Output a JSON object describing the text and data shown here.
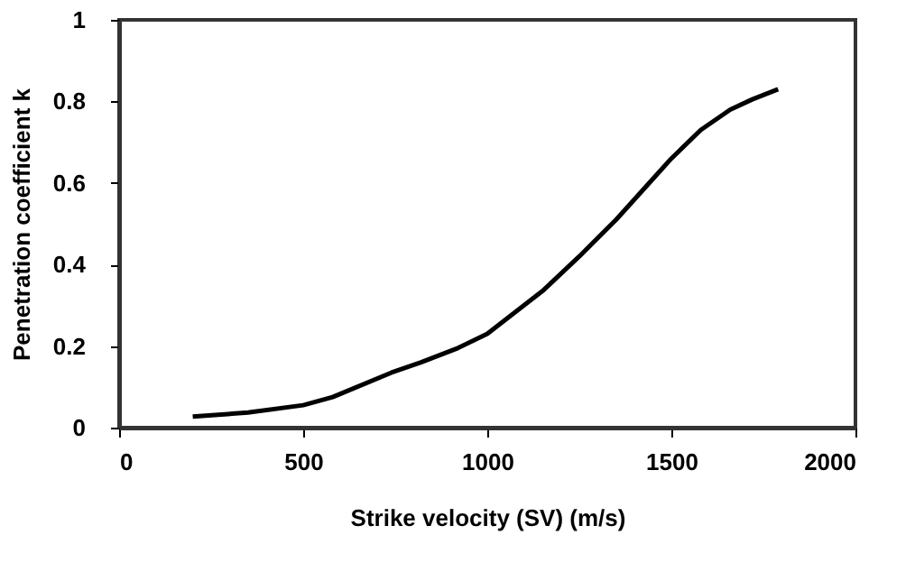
{
  "chart_data": {
    "type": "line",
    "xlabel": "Strike velocity (SV) (m/s)",
    "ylabel": "Penetration coefficient k",
    "x": [
      200,
      350,
      500,
      580,
      740,
      820,
      920,
      1000,
      1150,
      1250,
      1350,
      1450,
      1500,
      1580,
      1660,
      1720,
      1790
    ],
    "series": [
      {
        "color": "#000000",
        "values": [
          0.027,
          0.037,
          0.055,
          0.075,
          0.135,
          0.16,
          0.195,
          0.23,
          0.335,
          0.42,
          0.51,
          0.61,
          0.66,
          0.73,
          0.78,
          0.805,
          0.83
        ]
      }
    ],
    "xlim": [
      0,
      2000
    ],
    "xticks": [
      0,
      500,
      1000,
      1500,
      2000
    ],
    "ylim": [
      0,
      1
    ],
    "yticks": [
      0,
      0.2,
      0.4,
      0.6,
      0.8,
      1
    ],
    "grid": false,
    "marker": "none",
    "line_style": "solid"
  }
}
